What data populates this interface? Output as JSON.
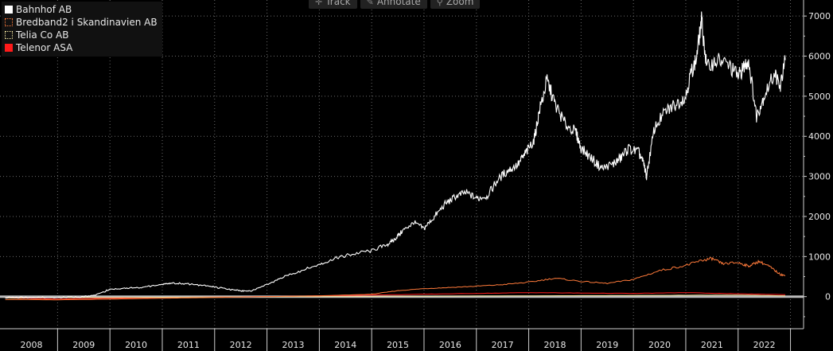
{
  "toolbar": {
    "track_label": "Track",
    "annotate_label": "Annotate",
    "zoom_label": "Zoom"
  },
  "chart_data": {
    "type": "line",
    "title": "",
    "xlabel": "",
    "ylabel": "",
    "ylim": [
      -800,
      7400
    ],
    "xlim": [
      2007.9,
      2023.25
    ],
    "y_ticks": [
      0,
      1000,
      2000,
      3000,
      4000,
      5000,
      6000,
      7000
    ],
    "x_ticks": [
      "2008",
      "2009",
      "2010",
      "2011",
      "2012",
      "2013",
      "2014",
      "2015",
      "2016",
      "2017",
      "2018",
      "2019",
      "2020",
      "2021",
      "2022"
    ],
    "grid": true,
    "legend_position": "top-left",
    "series": [
      {
        "name": "Bahnhof AB",
        "color": "#ffffff",
        "swatch_style": "filled",
        "x": [
          2008.0,
          2008.5,
          2009.0,
          2009.4,
          2009.7,
          2010.0,
          2010.3,
          2010.6,
          2011.0,
          2011.2,
          2011.5,
          2011.8,
          2012.0,
          2012.3,
          2012.5,
          2012.7,
          2013.0,
          2013.3,
          2013.6,
          2014.0,
          2014.3,
          2014.6,
          2015.0,
          2015.3,
          2015.45,
          2015.6,
          2015.8,
          2016.0,
          2016.2,
          2016.4,
          2016.6,
          2016.8,
          2017.0,
          2017.2,
          2017.4,
          2017.6,
          2017.8,
          2017.95,
          2018.1,
          2018.2,
          2018.35,
          2018.5,
          2018.7,
          2018.9,
          2019.0,
          2019.2,
          2019.4,
          2019.6,
          2019.75,
          2019.9,
          2020.1,
          2020.2,
          2020.25,
          2020.4,
          2020.6,
          2020.8,
          2021.0,
          2021.1,
          2021.2,
          2021.3,
          2021.4,
          2021.6,
          2021.8,
          2022.0,
          2022.1,
          2022.2,
          2022.35,
          2022.5,
          2022.7,
          2022.8,
          2022.9
        ],
        "values": [
          -20,
          -20,
          -20,
          -10,
          30,
          180,
          210,
          230,
          300,
          340,
          320,
          280,
          240,
          180,
          140,
          150,
          300,
          480,
          620,
          800,
          950,
          1050,
          1150,
          1300,
          1450,
          1650,
          1850,
          1700,
          2000,
          2300,
          2500,
          2600,
          2450,
          2500,
          2900,
          3150,
          3300,
          3600,
          3900,
          4600,
          5400,
          4800,
          4300,
          4100,
          3700,
          3450,
          3200,
          3300,
          3450,
          3700,
          3600,
          3300,
          3000,
          4200,
          4600,
          4800,
          5000,
          5600,
          5900,
          6900,
          5700,
          5900,
          5800,
          5500,
          5700,
          5900,
          4500,
          5000,
          5600,
          5200,
          5900
        ]
      },
      {
        "name": "Bredband2 i Skandinavien AB",
        "color": "#ff7a3a",
        "swatch_style": "dotted",
        "x": [
          2008.0,
          2009.0,
          2010.0,
          2011.0,
          2012.0,
          2013.0,
          2014.0,
          2015.0,
          2015.5,
          2016.0,
          2016.5,
          2017.0,
          2017.5,
          2018.0,
          2018.5,
          2019.0,
          2019.5,
          2020.0,
          2020.5,
          2021.0,
          2021.3,
          2021.5,
          2021.7,
          2022.0,
          2022.2,
          2022.4,
          2022.6,
          2022.8,
          2022.9
        ],
        "values": [
          -70,
          -80,
          -60,
          -40,
          -20,
          0,
          20,
          60,
          150,
          200,
          230,
          260,
          300,
          360,
          460,
          380,
          330,
          430,
          650,
          780,
          900,
          950,
          820,
          850,
          760,
          880,
          750,
          560,
          520
        ]
      },
      {
        "name": "Telia Co AB",
        "color": "#f5e6a0",
        "swatch_style": "dotted",
        "x": [
          2008.0,
          2010.0,
          2012.0,
          2014.0,
          2016.0,
          2018.0,
          2020.0,
          2022.0,
          2022.9
        ],
        "values": [
          -30,
          -20,
          -10,
          0,
          10,
          20,
          30,
          40,
          20
        ]
      },
      {
        "name": "Telenor ASA",
        "color": "#ff1a1a",
        "swatch_style": "filled",
        "x": [
          2008.0,
          2009.0,
          2010.0,
          2011.0,
          2012.0,
          2013.0,
          2014.0,
          2015.0,
          2016.0,
          2017.0,
          2018.0,
          2019.0,
          2020.0,
          2021.0,
          2022.0,
          2022.9
        ],
        "values": [
          -30,
          -60,
          -40,
          -20,
          -10,
          0,
          20,
          40,
          60,
          80,
          100,
          90,
          80,
          100,
          70,
          50
        ]
      }
    ]
  }
}
